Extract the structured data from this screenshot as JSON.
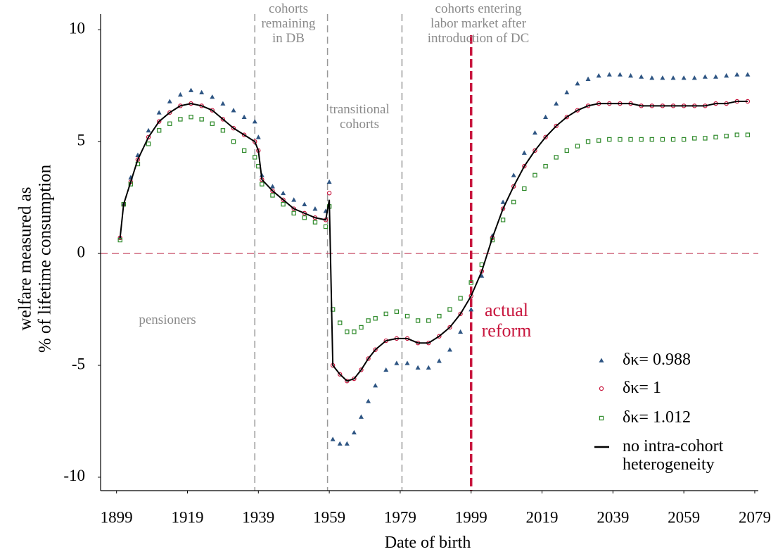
{
  "chart_data": {
    "type": "scatter",
    "xlabel": "Date of birth",
    "ylabel": "welfare measured as\n% of lifetime consumption",
    "xlim": [
      1894.5,
      2080
    ],
    "ylim": [
      -10.6,
      10.7
    ],
    "xticks": [
      1899,
      1919,
      1939,
      1959,
      1979,
      1999,
      2019,
      2039,
      2059,
      2079
    ],
    "yticks": [
      10,
      5,
      0,
      -5,
      -10
    ],
    "grid": false,
    "hline": 0,
    "vlines": [
      1938,
      1958.5,
      1979.5
    ],
    "reform_line": 1999,
    "annotations": [
      {
        "text": "cohorts\nremaining\nin DB"
      },
      {
        "text": "transitional\ncohorts"
      },
      {
        "text": "cohorts entering\nlabor market after\nintroduction of DC"
      },
      {
        "text": "pensioners"
      },
      {
        "text": "actual\nreform"
      }
    ],
    "x": [
      1900,
      1901,
      1903,
      1905,
      1908,
      1911,
      1914,
      1917,
      1920,
      1923,
      1926,
      1929,
      1932,
      1935,
      1938,
      1939,
      1940,
      1943,
      1946,
      1949,
      1952,
      1955,
      1958,
      1959,
      1960,
      1962,
      1964,
      1966,
      1968,
      1970,
      1972,
      1975,
      1978,
      1981,
      1984,
      1987,
      1990,
      1993,
      1996,
      1999,
      2002,
      2005,
      2008,
      2011,
      2014,
      2017,
      2020,
      2023,
      2026,
      2029,
      2032,
      2035,
      2038,
      2041,
      2044,
      2047,
      2050,
      2053,
      2056,
      2059,
      2062,
      2065,
      2068,
      2071,
      2074,
      2077
    ],
    "series": [
      {
        "name": "δκ= 0.988",
        "type": "scatter",
        "marker": "triangle",
        "color": "#2e5583",
        "values": [
          0.7,
          2.2,
          3.4,
          4.4,
          5.5,
          6.3,
          6.8,
          7.1,
          7.3,
          7.2,
          7.0,
          6.7,
          6.4,
          6.1,
          5.9,
          5.2,
          3.5,
          3.0,
          2.7,
          2.4,
          2.2,
          2.0,
          1.9,
          3.2,
          -8.3,
          -8.5,
          -8.5,
          -8.0,
          -7.3,
          -6.6,
          -5.9,
          -5.2,
          -4.9,
          -4.9,
          -5.1,
          -5.1,
          -4.8,
          -4.3,
          -3.5,
          -2.5,
          -1.0,
          0.8,
          2.3,
          3.5,
          4.5,
          5.4,
          6.1,
          6.7,
          7.2,
          7.6,
          7.8,
          7.95,
          8.0,
          8.0,
          7.95,
          7.9,
          7.85,
          7.85,
          7.85,
          7.85,
          7.85,
          7.9,
          7.9,
          7.95,
          8.0,
          8.0
        ]
      },
      {
        "name": "δκ= 1",
        "type": "scatter",
        "marker": "circle",
        "color": "#c8163e",
        "values": [
          0.7,
          2.2,
          3.2,
          4.2,
          5.2,
          5.9,
          6.3,
          6.6,
          6.7,
          6.6,
          6.4,
          6.0,
          5.6,
          5.3,
          5.0,
          4.6,
          3.3,
          2.8,
          2.4,
          2.0,
          1.8,
          1.6,
          1.5,
          2.7,
          -5.0,
          -5.4,
          -5.7,
          -5.6,
          -5.2,
          -4.7,
          -4.3,
          -3.9,
          -3.8,
          -3.8,
          -4.0,
          -4.0,
          -3.7,
          -3.3,
          -2.7,
          -1.9,
          -0.8,
          0.7,
          2.0,
          3.0,
          3.9,
          4.6,
          5.2,
          5.7,
          6.1,
          6.4,
          6.6,
          6.7,
          6.7,
          6.7,
          6.7,
          6.6,
          6.6,
          6.6,
          6.6,
          6.6,
          6.6,
          6.6,
          6.7,
          6.7,
          6.8,
          6.8
        ]
      },
      {
        "name": "δκ= 1.012",
        "type": "scatter",
        "marker": "square",
        "color": "#2e8a2a",
        "values": [
          0.6,
          2.2,
          3.1,
          4.0,
          4.9,
          5.5,
          5.8,
          6.0,
          6.1,
          6.0,
          5.8,
          5.5,
          5.0,
          4.6,
          4.3,
          3.9,
          3.1,
          2.6,
          2.2,
          1.8,
          1.6,
          1.4,
          1.2,
          2.1,
          -2.5,
          -3.1,
          -3.5,
          -3.5,
          -3.3,
          -3.0,
          -2.9,
          -2.7,
          -2.6,
          -2.8,
          -3.0,
          -3.0,
          -2.8,
          -2.5,
          -2.0,
          -1.3,
          -0.5,
          0.6,
          1.5,
          2.3,
          2.9,
          3.5,
          3.9,
          4.3,
          4.6,
          4.8,
          5.0,
          5.05,
          5.1,
          5.1,
          5.1,
          5.1,
          5.1,
          5.1,
          5.1,
          5.1,
          5.15,
          5.15,
          5.2,
          5.25,
          5.3,
          5.3
        ]
      },
      {
        "name": "no intra-cohort\nheterogeneity",
        "type": "line",
        "color": "#000000",
        "values": [
          0.7,
          2.2,
          3.2,
          4.2,
          5.2,
          5.9,
          6.3,
          6.6,
          6.7,
          6.6,
          6.4,
          6.0,
          5.6,
          5.3,
          5.0,
          4.6,
          3.3,
          2.8,
          2.4,
          2.0,
          1.8,
          1.6,
          1.5,
          2.4,
          -5.0,
          -5.4,
          -5.7,
          -5.6,
          -5.2,
          -4.7,
          -4.3,
          -3.9,
          -3.8,
          -3.8,
          -4.0,
          -4.0,
          -3.7,
          -3.3,
          -2.7,
          -1.9,
          -0.8,
          0.7,
          2.0,
          3.0,
          3.9,
          4.6,
          5.2,
          5.7,
          6.1,
          6.4,
          6.6,
          6.7,
          6.7,
          6.7,
          6.7,
          6.6,
          6.6,
          6.6,
          6.6,
          6.6,
          6.6,
          6.6,
          6.7,
          6.7,
          6.8,
          6.8
        ]
      }
    ]
  }
}
